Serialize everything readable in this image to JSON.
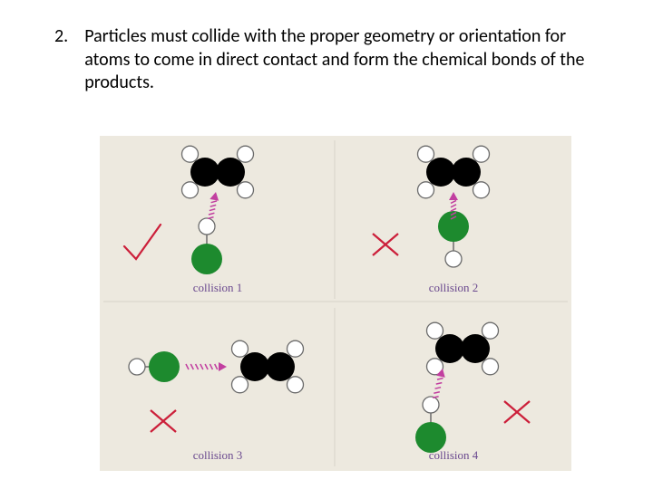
{
  "list_number": "2.",
  "body_text": "Particles must collide with the proper geometry or orientation for atoms to come in direct contact and form the chemical bonds of the products.",
  "diagram": {
    "background_color": "#ede9df",
    "panels": [
      {
        "id": 0,
        "label": "collision 1",
        "label_color": "#6b4a8f",
        "mark": "check",
        "mark_color": "#cc1f3a"
      },
      {
        "id": 1,
        "label": "collision 2",
        "label_color": "#6b4a8f",
        "mark": "cross",
        "mark_color": "#cc1f3a"
      },
      {
        "id": 2,
        "label": "collision 3",
        "label_color": "#6b4a8f",
        "mark": "cross",
        "mark_color": "#cc1f3a"
      },
      {
        "id": 3,
        "label": "collision 4",
        "label_color": "#6b4a8f",
        "mark": "cross",
        "mark_color": "#cc1f3a"
      }
    ],
    "colors": {
      "ethene_c": "#000000",
      "ethene_h_fill": "#ffffff",
      "ethene_h_stroke": "#6b6b6b",
      "hcl_h_fill": "#ffffff",
      "hcl_h_stroke": "#6b6b6b",
      "hcl_cl_fill": "#1d8a2e",
      "arrow_color": "#c23fa0",
      "bond_stroke": "#000000"
    }
  }
}
